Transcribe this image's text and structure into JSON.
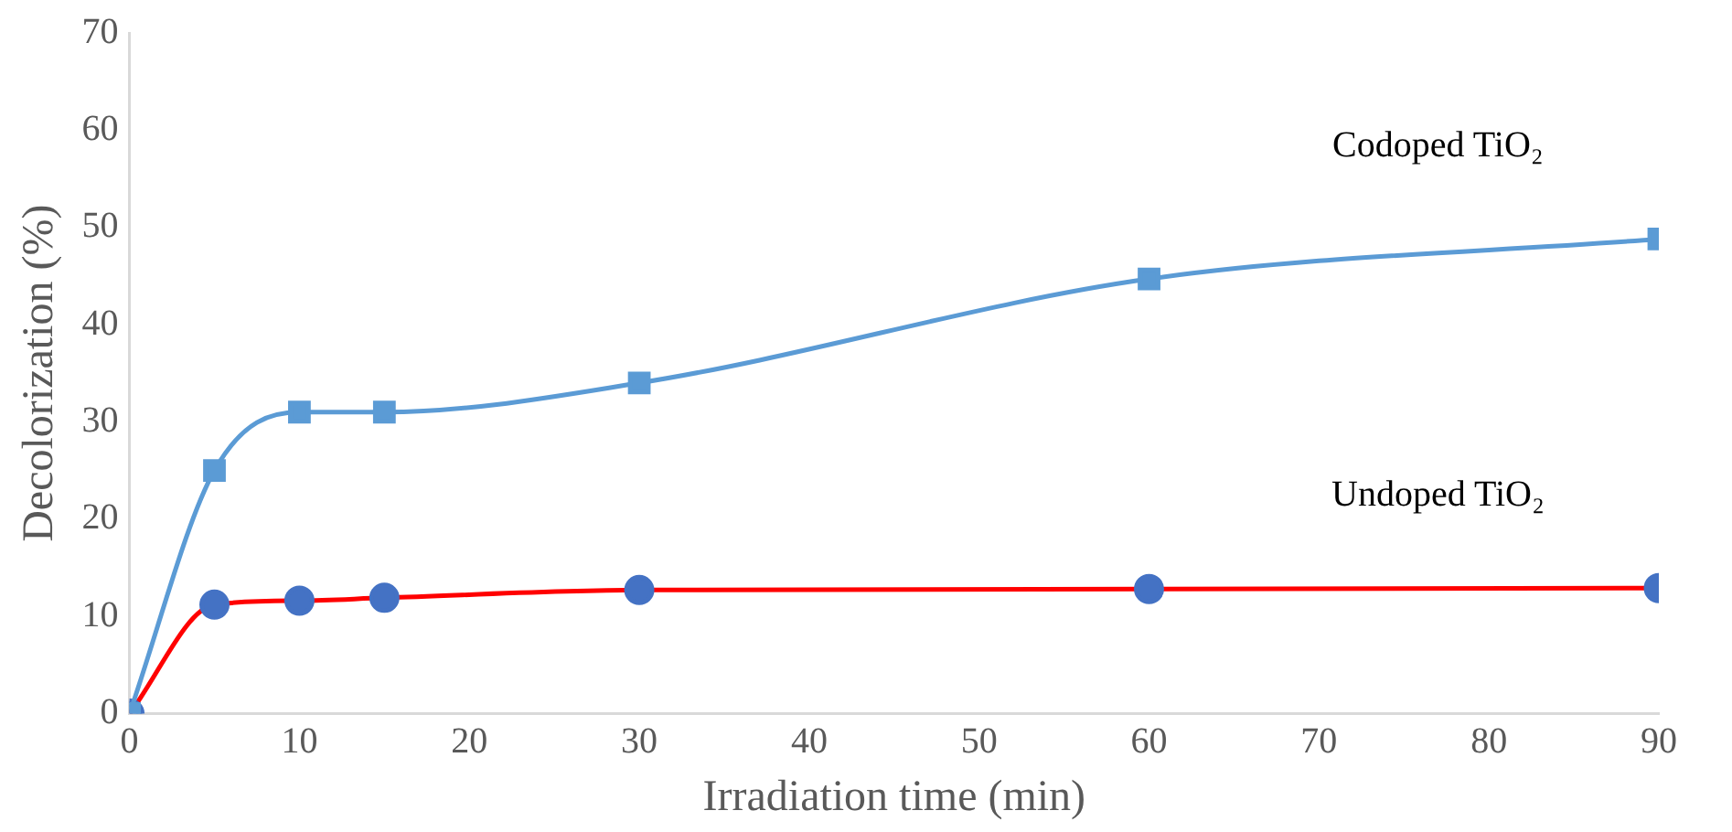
{
  "chart_data": {
    "type": "line",
    "xlabel": "Irradiation time (min)",
    "ylabel": "Decolorization (%)",
    "x": [
      0,
      5,
      10,
      15,
      30,
      60,
      90
    ],
    "series": [
      {
        "name": "Codoped TiO₂",
        "color": "#5b9bd5",
        "colors": [
          "#5b9bd5",
          "#5b9bd5",
          "#5b9bd5",
          "#5b9bd5",
          "#5b9bd5",
          "#5b9bd5",
          "#5b9bd5"
        ],
        "marker": "square",
        "values": [
          0,
          25,
          31,
          31,
          34,
          44.7,
          48.8
        ]
      },
      {
        "name": "Undoped TiO₂",
        "color": "#ff0000",
        "colors": [
          "#4472c4",
          "#4472c4",
          "#4472c4",
          "#4472c4",
          "#4472c4",
          "#4472c4",
          "#4472c4"
        ],
        "marker": "circle",
        "values": [
          0,
          11.2,
          11.6,
          11.9,
          12.7,
          12.8,
          12.9
        ]
      }
    ],
    "xlim": [
      0,
      90
    ],
    "xticks": [
      0,
      10,
      20,
      30,
      40,
      50,
      60,
      70,
      80,
      90
    ],
    "ylim": [
      0,
      70
    ],
    "yticks": [
      0,
      10,
      20,
      30,
      40,
      50,
      60,
      70
    ],
    "grid": false,
    "legend": false,
    "line_style": "solid"
  }
}
